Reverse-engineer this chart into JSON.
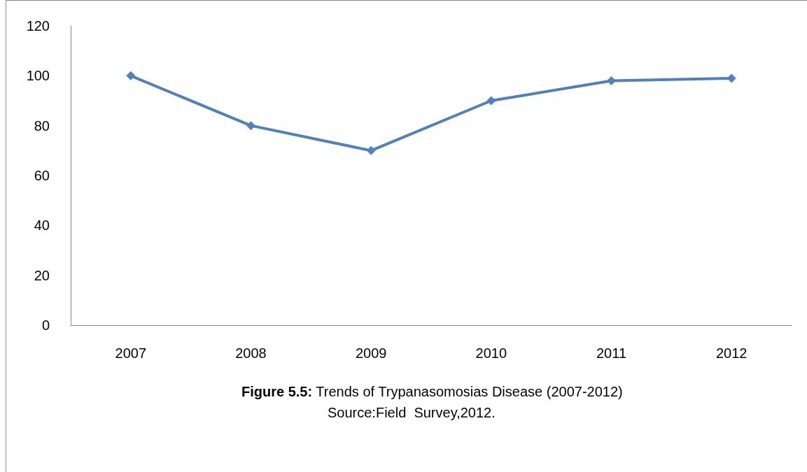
{
  "chart_data": {
    "type": "line",
    "title": "Figure 5.5: Trends of Trypanasomosias Disease (2007-2012)",
    "categories": [
      "2007",
      "2008",
      "2009",
      "2010",
      "2011",
      "2012"
    ],
    "series": [
      {
        "color": "#4f81bd",
        "values": [
          100,
          80,
          70,
          90,
          98,
          99
        ]
      }
    ],
    "ylim": [
      0,
      120
    ],
    "yticks": [
      0,
      20,
      40,
      60,
      80,
      100,
      120
    ],
    "grid": false,
    "marker": "diamond",
    "line_style": "solid",
    "annotations": [
      "Source:Field  Survey,2012."
    ]
  }
}
